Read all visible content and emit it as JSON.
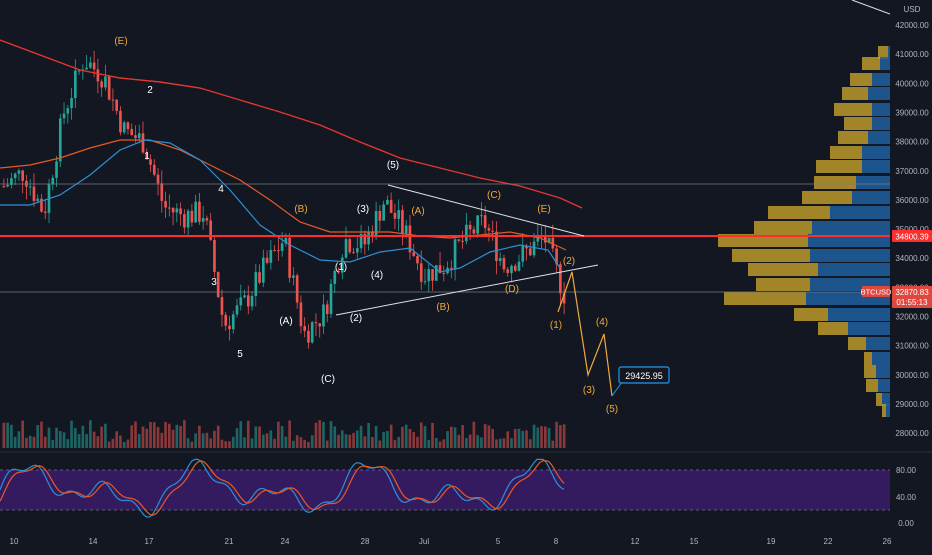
{
  "chart_data": {
    "type": "candlestick",
    "symbol": "BTCUSD",
    "currency": "USD",
    "price_axis": {
      "ylim": [
        27500,
        42800
      ],
      "ticks": [
        "42000.00",
        "41000.00",
        "40000.00",
        "39000.00",
        "38000.00",
        "37000.00",
        "36000.00",
        "35000.00",
        "34000.00",
        "33000.00",
        "32000.00",
        "31000.00",
        "30000.00",
        "29000.00",
        "28000.00"
      ]
    },
    "date_axis": {
      "labels": [
        "10",
        "14",
        "17",
        "21",
        "24",
        "28",
        "Jul",
        "5",
        "8",
        "12",
        "15",
        "19",
        "22",
        "26"
      ]
    },
    "last_price": "32870.83",
    "countdown": "01:55:13",
    "horizontal_level": "34800.39",
    "target_price": "29425.95",
    "stoch_axis": {
      "ylim": [
        -10,
        100
      ],
      "ticks": [
        "80.00",
        "40.00",
        "0.00"
      ],
      "band": [
        20,
        80
      ]
    },
    "close_series": [
      {
        "d": "Jun 10",
        "v": 36500
      },
      {
        "d": "Jun 11",
        "v": 37000
      },
      {
        "d": "Jun 12",
        "v": 35600
      },
      {
        "d": "Jun 13",
        "v": 39000
      },
      {
        "d": "Jun 14",
        "v": 40800
      },
      {
        "d": "Jun 15",
        "v": 40200
      },
      {
        "d": "Jun 16",
        "v": 38400
      },
      {
        "d": "Jun 17",
        "v": 38000
      },
      {
        "d": "Jun 18",
        "v": 35800
      },
      {
        "d": "Jun 19",
        "v": 35500
      },
      {
        "d": "Jun 20",
        "v": 35600
      },
      {
        "d": "Jun 21",
        "v": 31800
      },
      {
        "d": "Jun 22",
        "v": 32500
      },
      {
        "d": "Jun 23",
        "v": 33700
      },
      {
        "d": "Jun 24",
        "v": 34700
      },
      {
        "d": "Jun 25",
        "v": 31500
      },
      {
        "d": "Jun 26",
        "v": 32200
      },
      {
        "d": "Jun 27",
        "v": 34700
      },
      {
        "d": "Jun 28",
        "v": 34500
      },
      {
        "d": "Jun 29",
        "v": 36000
      },
      {
        "d": "Jun 30",
        "v": 35000
      },
      {
        "d": "Jul 1",
        "v": 33500
      },
      {
        "d": "Jul 2",
        "v": 33800
      },
      {
        "d": "Jul 3",
        "v": 34700
      },
      {
        "d": "Jul 4",
        "v": 35300
      },
      {
        "d": "Jul 5",
        "v": 33800
      },
      {
        "d": "Jul 6",
        "v": 34200
      },
      {
        "d": "Jul 7",
        "v": 34800
      },
      {
        "d": "Jul 8",
        "v": 32870.83
      }
    ],
    "wave_labels": [
      {
        "text": "(E)",
        "color": "orange"
      },
      {
        "text": "2",
        "color": "white"
      },
      {
        "text": "1",
        "color": "white"
      },
      {
        "text": "4",
        "color": "white"
      },
      {
        "text": "3",
        "color": "white"
      },
      {
        "text": "5",
        "color": "white"
      },
      {
        "text": "(A)",
        "color": "white"
      },
      {
        "text": "(B)",
        "color": "orange"
      },
      {
        "text": "(1)",
        "color": "white"
      },
      {
        "text": "(3)",
        "color": "white"
      },
      {
        "text": "(4)",
        "color": "white"
      },
      {
        "text": "(2)",
        "color": "white"
      },
      {
        "text": "(C)",
        "color": "white"
      },
      {
        "text": "(5)",
        "color": "white"
      },
      {
        "text": "(A)",
        "color": "orange"
      },
      {
        "text": "(B)",
        "color": "orange"
      },
      {
        "text": "(C)",
        "color": "orange"
      },
      {
        "text": "(D)",
        "color": "orange"
      },
      {
        "text": "(E)",
        "color": "orange"
      },
      {
        "text": "(2)",
        "color": "orange"
      },
      {
        "text": "(1)",
        "color": "orange"
      },
      {
        "text": "(4)",
        "color": "orange"
      },
      {
        "text": "(3)",
        "color": "orange"
      },
      {
        "text": "(5)",
        "color": "orange"
      }
    ]
  },
  "colors": {
    "background": "#131722",
    "bull": "#26a69a",
    "bear": "#ef5350",
    "ma_slow": "#e4372d",
    "ma_mid": "#e65a22",
    "ma_fast": "#2d8fd5",
    "level_line": "#ff2d2d",
    "wave_orange": "#f0a93a",
    "stoch_band": "#3b1c6b",
    "profile_gold": "#c7a12b",
    "profile_blue": "#1f5f9e",
    "price_tag": "#e0483f",
    "target_tag": "#2196f3"
  }
}
